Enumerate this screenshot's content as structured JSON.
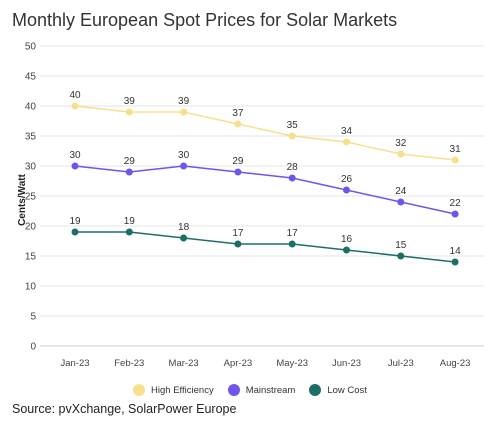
{
  "chart_data": {
    "type": "line",
    "title": "Monthly European Spot Prices for Solar Markets",
    "xlabel": "",
    "ylabel": "Cents/Watt",
    "ylim": [
      0,
      50
    ],
    "yticks": [
      0,
      5,
      10,
      15,
      20,
      25,
      30,
      35,
      40,
      45,
      50
    ],
    "categories": [
      "Jan-23",
      "Feb-23",
      "Mar-23",
      "Apr-23",
      "May-23",
      "Jun-23",
      "Jul-23",
      "Aug-23"
    ],
    "grid": true,
    "legend_position": "bottom",
    "series": [
      {
        "name": "High Efficiency",
        "color": "#f7e08d",
        "values": [
          40,
          39,
          39,
          37,
          35,
          34,
          32,
          31
        ]
      },
      {
        "name": "Mainstream",
        "color": "#7155e8",
        "values": [
          30,
          29,
          30,
          29,
          28,
          26,
          24,
          22
        ]
      },
      {
        "name": "Low Cost",
        "color": "#1e6e68",
        "values": [
          19,
          19,
          18,
          17,
          17,
          16,
          15,
          14
        ]
      }
    ]
  },
  "source": "Source: pvXchange, SolarPower Europe"
}
